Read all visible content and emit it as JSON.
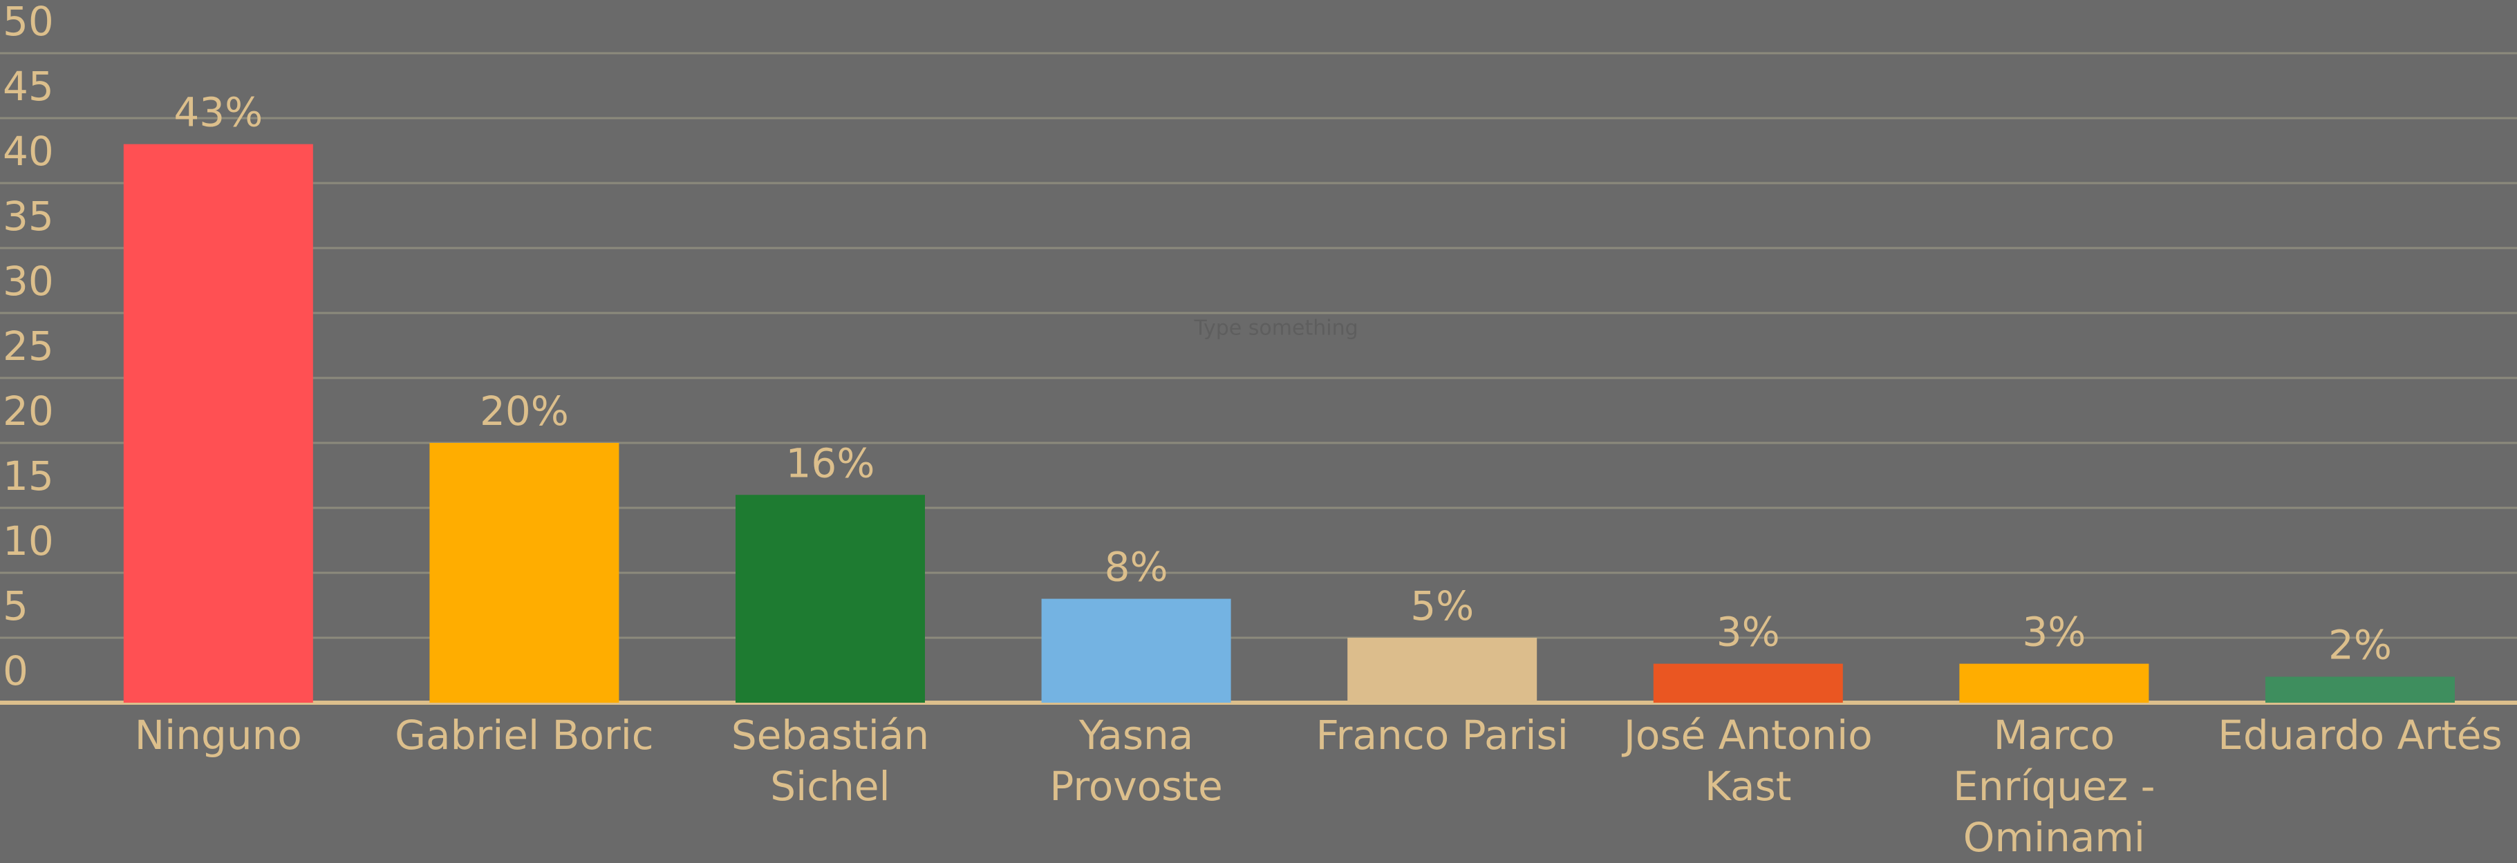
{
  "chart_data": {
    "type": "bar",
    "categories": [
      "Ninguno",
      "Gabriel Boric",
      "Sebastián Sichel",
      "Yasna Provoste",
      "Franco Parisi",
      "José Antonio Kast",
      "Marco Enríquez - Ominami",
      "Eduardo Artés"
    ],
    "values": [
      43,
      20,
      16,
      8,
      5,
      3,
      3,
      2
    ],
    "value_labels": [
      "43%",
      "20%",
      "16%",
      "8%",
      "5%",
      "3%",
      "3%",
      "2%"
    ],
    "colors": [
      "#ff5053",
      "#ffad00",
      "#1e7b31",
      "#74b3e2",
      "#dcbd8c",
      "#ea5622",
      "#ffad00",
      "#3e8e5e"
    ],
    "ylim": [
      0,
      50
    ],
    "yticks": [
      0,
      5,
      10,
      15,
      20,
      25,
      30,
      35,
      40,
      45,
      50
    ],
    "grid": true,
    "annotation": "Type something"
  }
}
